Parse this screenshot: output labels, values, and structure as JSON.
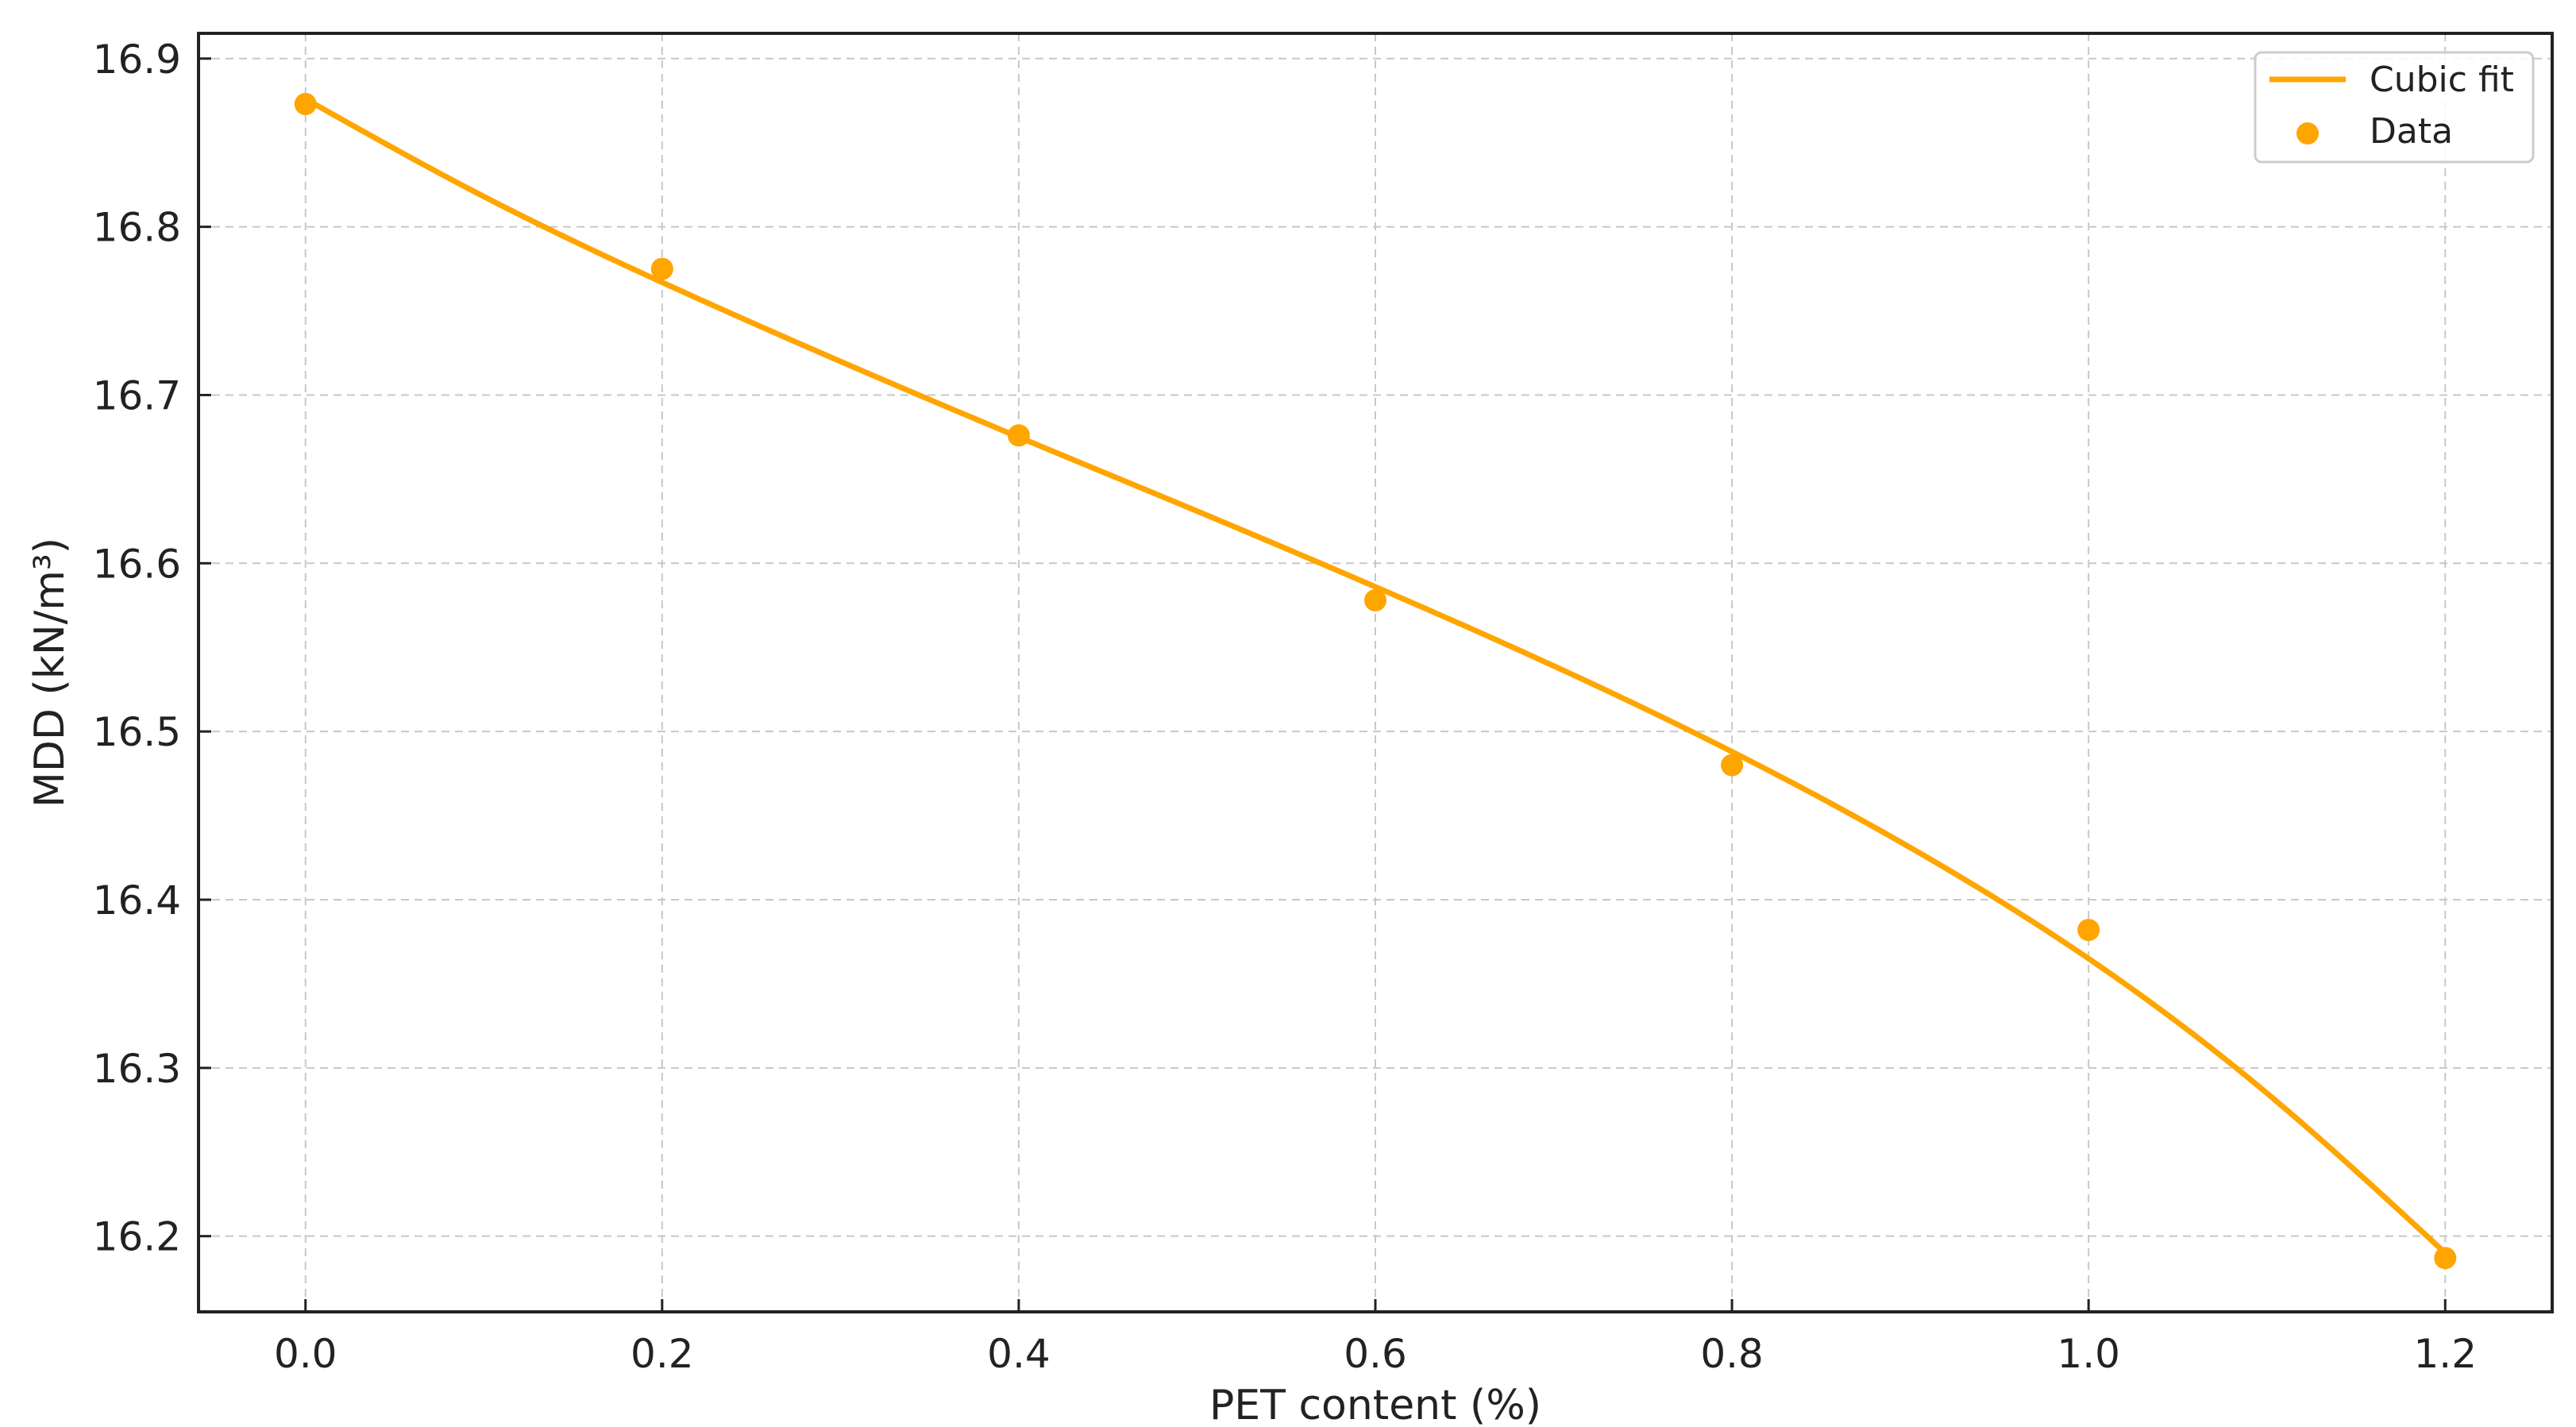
{
  "chart_data": {
    "type": "scatter",
    "xlabel": "PET content (%)",
    "ylabel": "MDD (kN/m³)",
    "xlim": [
      -0.06,
      1.26
    ],
    "ylim": [
      16.155,
      16.915
    ],
    "xticks": [
      0.0,
      0.2,
      0.4,
      0.6,
      0.8,
      1.0,
      1.2
    ],
    "xtick_labels": [
      "0.0",
      "0.2",
      "0.4",
      "0.6",
      "0.8",
      "1.0",
      "1.2"
    ],
    "yticks": [
      16.2,
      16.3,
      16.4,
      16.5,
      16.6,
      16.7,
      16.8,
      16.9
    ],
    "ytick_labels": [
      "16.2",
      "16.3",
      "16.4",
      "16.5",
      "16.6",
      "16.7",
      "16.8",
      "16.9"
    ],
    "grid": true,
    "legend_position": "top-right",
    "series": [
      {
        "name": "Cubic fit",
        "kind": "line",
        "color": "#FFA500",
        "x": [
          0.0,
          0.1,
          0.2,
          0.3,
          0.4,
          0.5,
          0.6,
          0.7,
          0.8,
          0.9,
          1.0,
          1.1,
          1.2
        ],
        "y": [
          16.876,
          16.818,
          16.767,
          16.72,
          16.675,
          16.631,
          16.586,
          16.539,
          16.488,
          16.431,
          16.365,
          16.285,
          16.19
        ]
      },
      {
        "name": "Data",
        "kind": "scatter",
        "color": "#FFA500",
        "x": [
          0.0,
          0.2,
          0.4,
          0.6,
          0.8,
          1.0,
          1.2
        ],
        "y": [
          16.873,
          16.775,
          16.676,
          16.578,
          16.48,
          16.382,
          16.187
        ]
      }
    ]
  }
}
